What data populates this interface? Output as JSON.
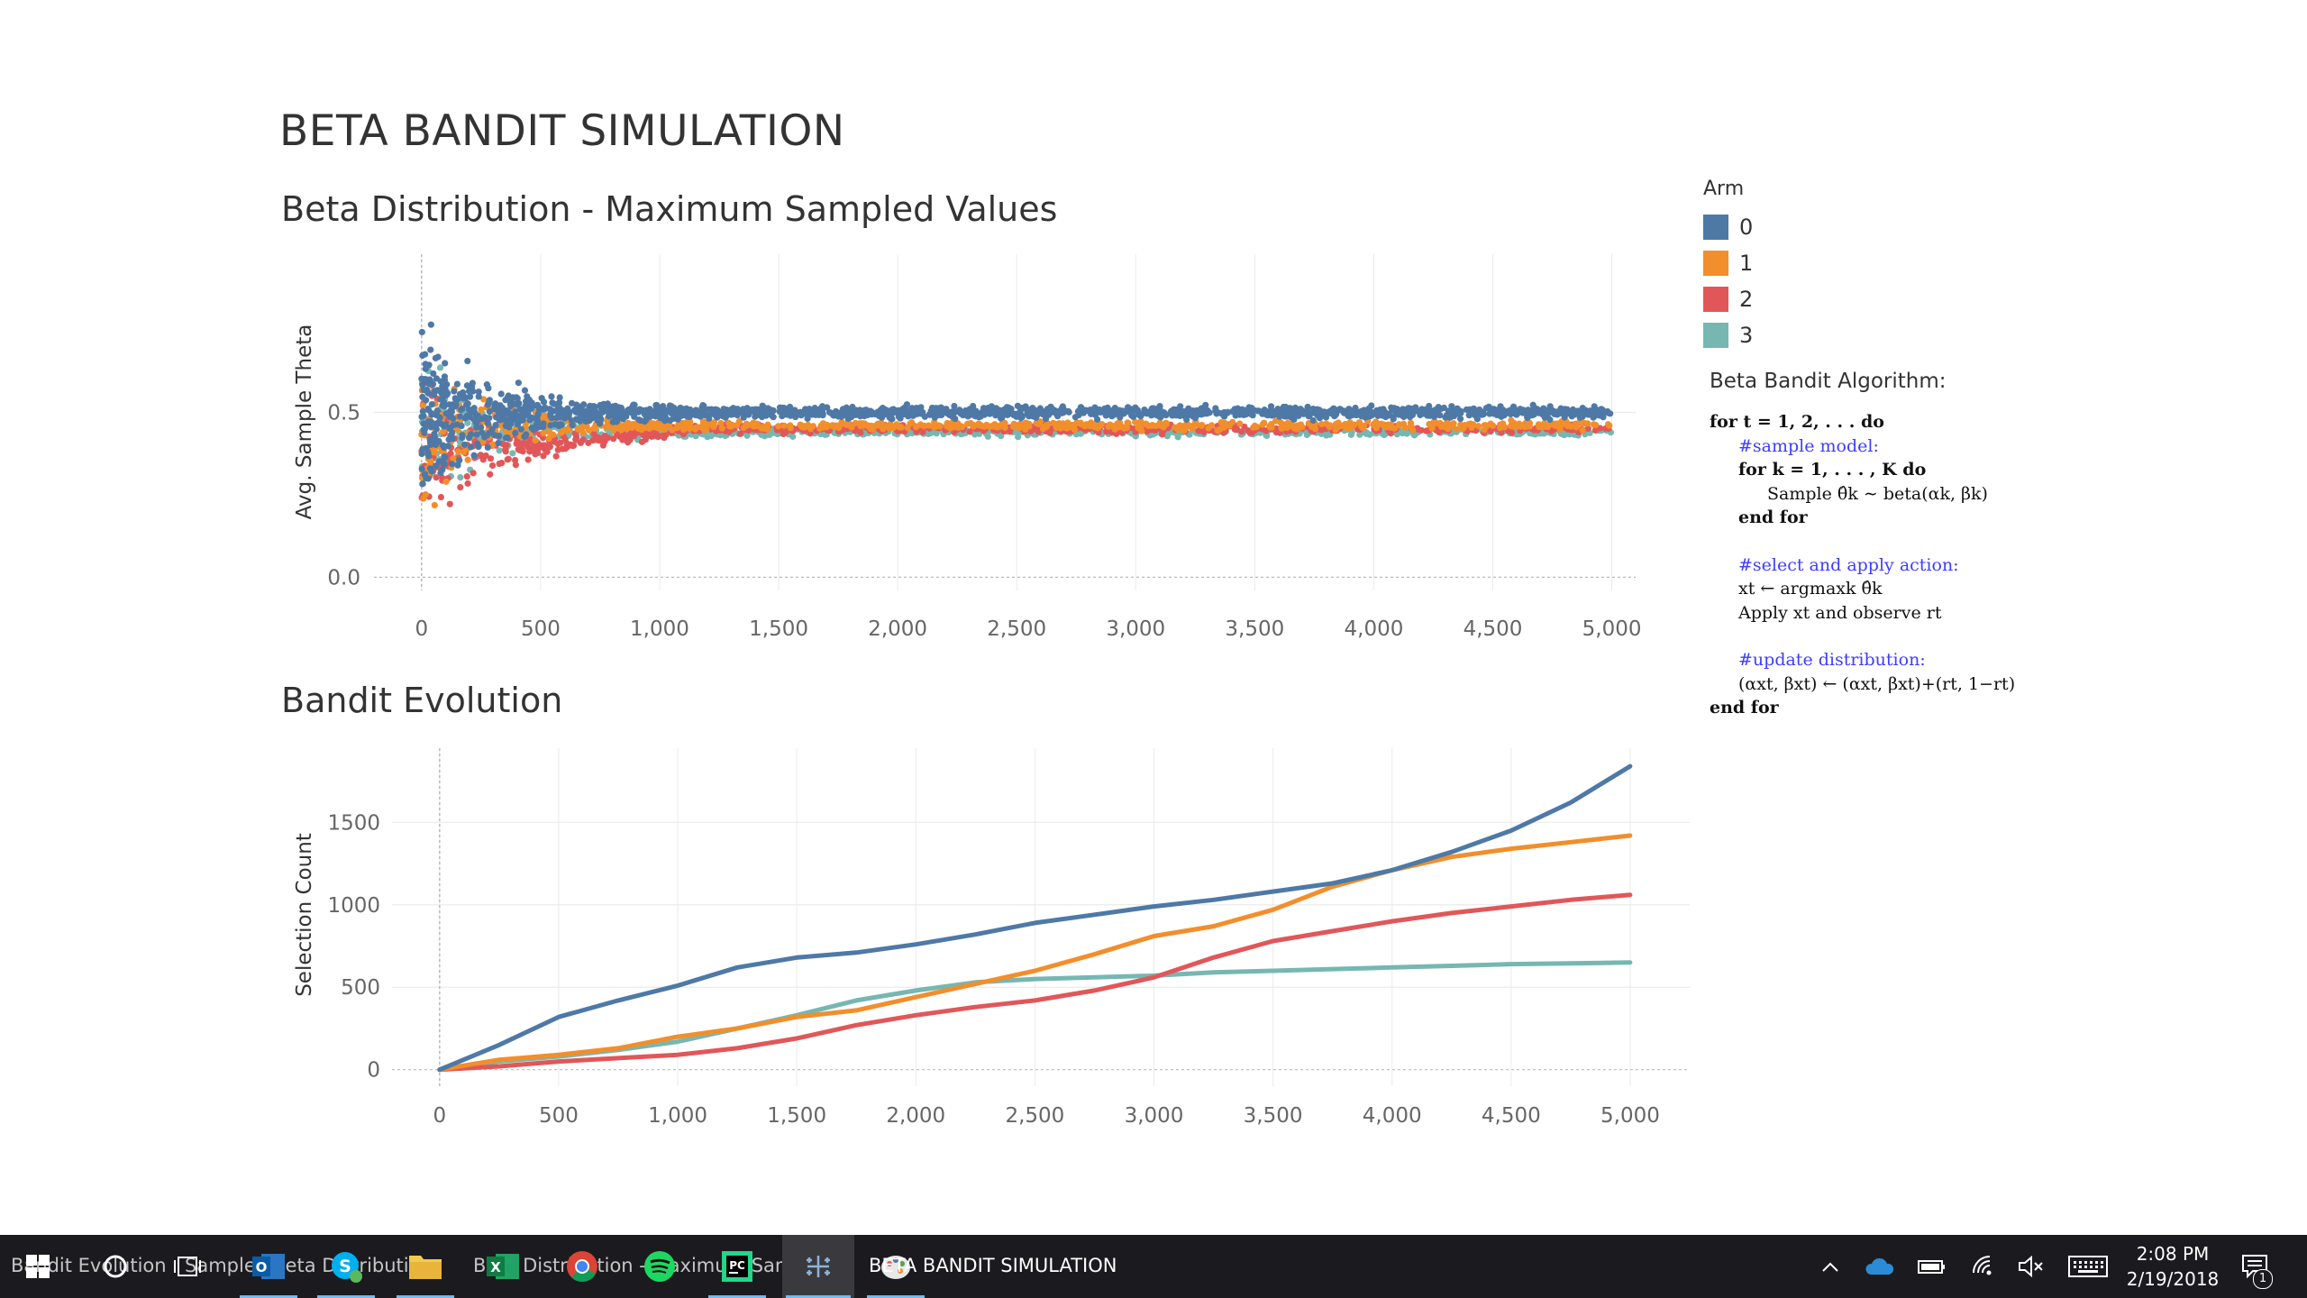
{
  "dashboard": {
    "title": "BETA BANDIT SIMULATION"
  },
  "colors": {
    "arm0": "#4e79a7",
    "arm1": "#f28e2b",
    "arm2": "#e15759",
    "arm3": "#76b7b2",
    "taskbar": "#1b1b1f",
    "accent_underline": "#76b9ed",
    "comment_blue": "#3d3dff"
  },
  "legend": {
    "title": "Arm",
    "items": [
      "0",
      "1",
      "2",
      "3"
    ]
  },
  "algorithm": {
    "title": "Beta Bandit Algorithm:",
    "lines": [
      "for t = 1, 2, . . . do",
      "#sample model:",
      "for k = 1, . . . , K do",
      "Sample θ̂k ∼ beta(αk, βk)",
      "end for",
      "#select and apply action:",
      "xt ← argmaxk θ̂k",
      "Apply xt and observe rt",
      "#update distribution:",
      "(αxt, βxt) ← (αxt, βxt)+(rt, 1−rt)",
      "end for"
    ]
  },
  "chart_data": [
    {
      "type": "scatter",
      "title": "Beta Distribution - Maximum Sampled Values",
      "xlabel": "",
      "ylabel": "Avg. Sample Theta",
      "xlim": [
        -200,
        5100
      ],
      "ylim": [
        -0.04,
        0.98
      ],
      "x_ticks": [
        "0",
        "500",
        "1,000",
        "1,500",
        "2,000",
        "2,500",
        "3,000",
        "3,500",
        "4,000",
        "4,500",
        "5,000"
      ],
      "y_ticks": [
        "0.0",
        "0.5"
      ],
      "grid": true,
      "legend_position": "right",
      "series": [
        {
          "name": "0",
          "center": 0.5,
          "start_spread": 0.45,
          "end_spread": 0.03
        },
        {
          "name": "1",
          "center": 0.46,
          "start_spread": 0.4,
          "end_spread": 0.02
        },
        {
          "name": "2",
          "center": 0.45,
          "start_spread": 0.38,
          "end_spread": 0.02
        },
        {
          "name": "3",
          "center": 0.44,
          "start_spread": 0.42,
          "end_spread": 0.02
        }
      ]
    },
    {
      "type": "line",
      "title": "Bandit Evolution",
      "xlabel": "",
      "ylabel": "Selection Count",
      "xlim": [
        -200,
        5250
      ],
      "ylim": [
        -100,
        1950
      ],
      "x_ticks": [
        "0",
        "500",
        "1,000",
        "1,500",
        "2,000",
        "2,500",
        "3,000",
        "3,500",
        "4,000",
        "4,500",
        "5,000"
      ],
      "y_ticks": [
        "0",
        "500",
        "1000",
        "1500"
      ],
      "grid": true,
      "x": [
        0,
        250,
        500,
        750,
        1000,
        1250,
        1500,
        1750,
        2000,
        2250,
        2500,
        2750,
        3000,
        3250,
        3500,
        3750,
        4000,
        4250,
        4500,
        4750,
        5000
      ],
      "series": [
        {
          "name": "0",
          "values": [
            0,
            150,
            320,
            420,
            510,
            620,
            680,
            710,
            760,
            820,
            890,
            940,
            990,
            1030,
            1080,
            1130,
            1210,
            1320,
            1450,
            1620,
            1840
          ]
        },
        {
          "name": "1",
          "values": [
            0,
            60,
            90,
            130,
            200,
            250,
            320,
            360,
            440,
            520,
            600,
            700,
            810,
            870,
            970,
            1110,
            1210,
            1290,
            1340,
            1380,
            1420
          ]
        },
        {
          "name": "2",
          "values": [
            0,
            20,
            50,
            70,
            90,
            130,
            190,
            270,
            330,
            380,
            420,
            480,
            560,
            680,
            780,
            840,
            900,
            950,
            990,
            1030,
            1060
          ]
        },
        {
          "name": "3",
          "values": [
            0,
            50,
            80,
            120,
            170,
            250,
            330,
            420,
            480,
            530,
            550,
            560,
            570,
            590,
            600,
            610,
            620,
            630,
            640,
            645,
            650
          ]
        }
      ]
    }
  ],
  "taskbar": {
    "items": [
      {
        "name": "start-button",
        "label": ""
      },
      {
        "name": "cortana-button",
        "label": ""
      },
      {
        "name": "task-view-button",
        "label": ""
      },
      {
        "name": "outlook-taskbar",
        "label": ""
      },
      {
        "name": "skype-taskbar",
        "label": ""
      },
      {
        "name": "file-explorer-taskbar",
        "label": ""
      },
      {
        "name": "excel-taskbar",
        "label": ""
      },
      {
        "name": "chrome-taskbar",
        "label": ""
      },
      {
        "name": "spotify-taskbar",
        "label": ""
      },
      {
        "name": "pycharm-taskbar",
        "label": ""
      },
      {
        "name": "tableau-taskbar",
        "label": ""
      },
      {
        "name": "paint-taskbar",
        "label": ""
      }
    ],
    "background_labels": [
      "Bandit Evolution",
      "Sample Theta Distribution",
      "Beta Distribution - Maximum Sampled",
      "BETA BANDIT SIMULATION"
    ],
    "clock": {
      "time": "2:08 PM",
      "date": "2/19/2018"
    },
    "notification_count": "1"
  }
}
